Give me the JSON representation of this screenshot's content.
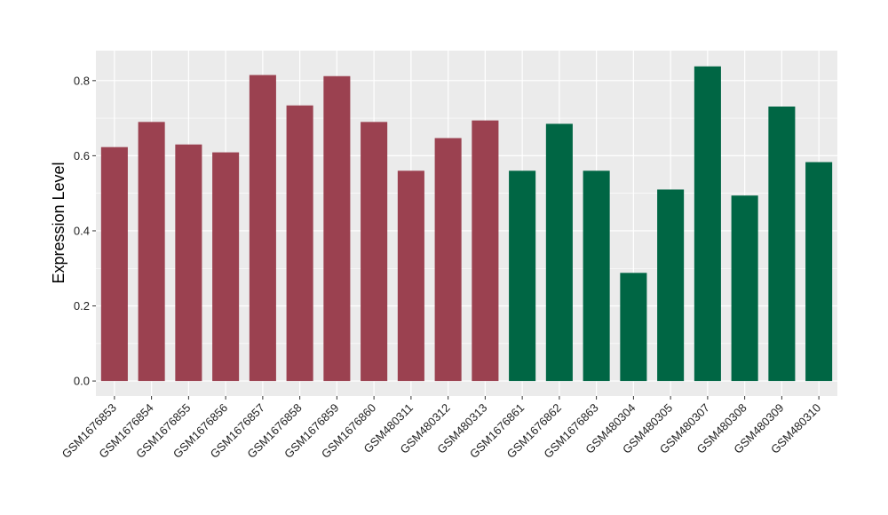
{
  "chart_data": {
    "type": "bar",
    "title": "",
    "xlabel": "",
    "ylabel": "Expression Level",
    "ylim": [
      -0.04,
      0.88
    ],
    "yticks": [
      0.0,
      0.2,
      0.4,
      0.6,
      0.8
    ],
    "ytick_labels": [
      "0.0",
      "0.2",
      "0.4",
      "0.6",
      "0.8"
    ],
    "grid": true,
    "legend": "none",
    "colors": {
      "group1": "#9b4150",
      "group2": "#006644",
      "panel": "#ebebeb",
      "grid": "#ffffff"
    },
    "categories": [
      "GSM1676853",
      "GSM1676854",
      "GSM1676855",
      "GSM1676856",
      "GSM1676857",
      "GSM1676858",
      "GSM1676859",
      "GSM1676860",
      "GSM480311",
      "GSM480312",
      "GSM480313",
      "GSM1676861",
      "GSM1676862",
      "GSM1676863",
      "GSM480304",
      "GSM480305",
      "GSM480307",
      "GSM480308",
      "GSM480309",
      "GSM480310"
    ],
    "values": [
      0.623,
      0.69,
      0.63,
      0.609,
      0.815,
      0.734,
      0.812,
      0.69,
      0.56,
      0.647,
      0.694,
      0.56,
      0.685,
      0.56,
      0.288,
      0.51,
      0.838,
      0.494,
      0.731,
      0.583
    ],
    "groups": [
      1,
      1,
      1,
      1,
      1,
      1,
      1,
      1,
      1,
      1,
      1,
      2,
      2,
      2,
      2,
      2,
      2,
      2,
      2,
      2
    ]
  }
}
